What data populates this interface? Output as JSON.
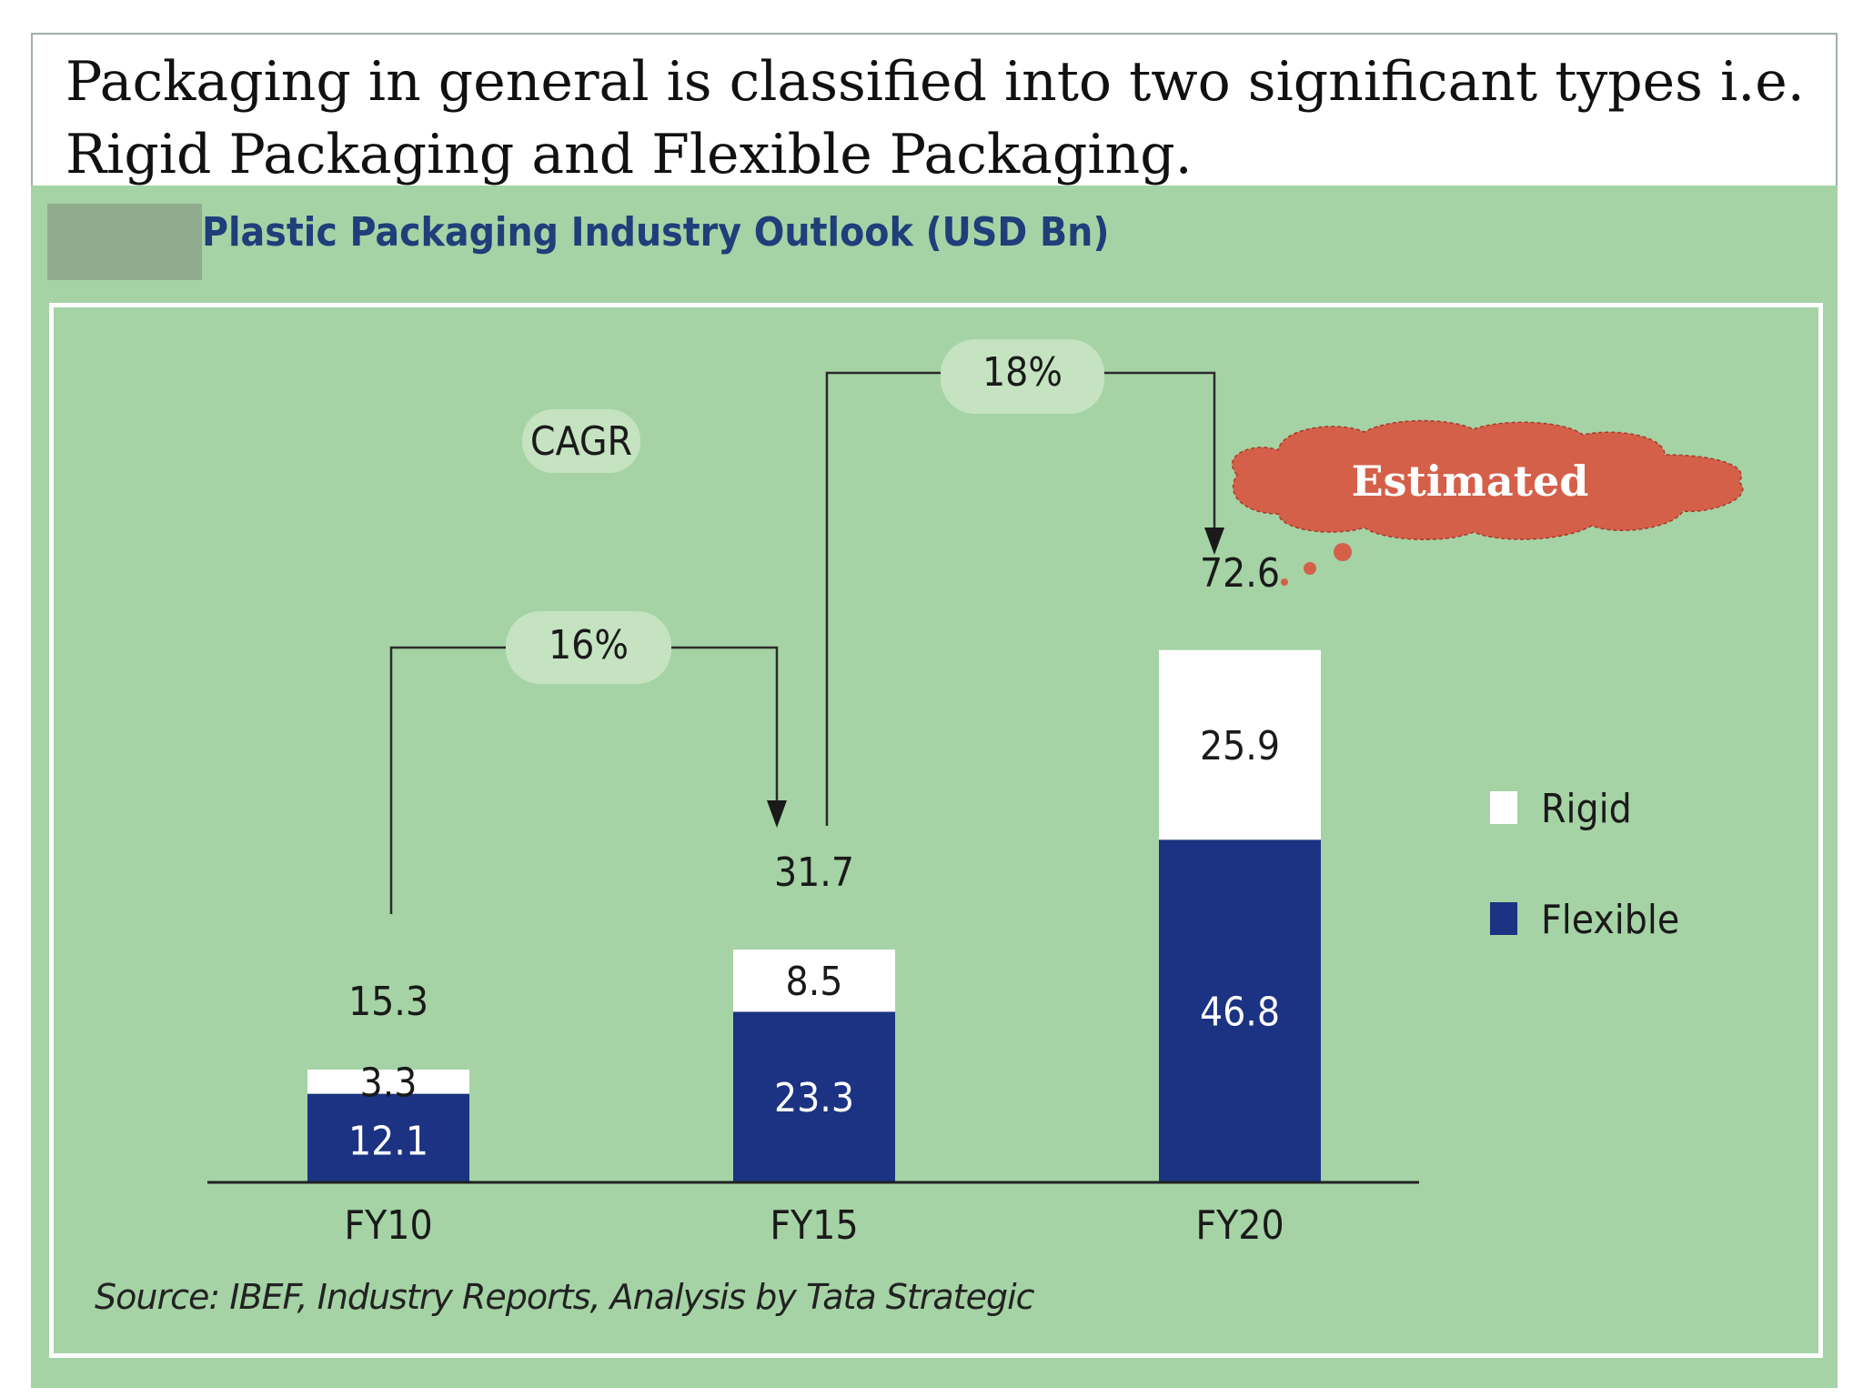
{
  "heading": {
    "line1": "Packaging in general is classified into two significant types i.e.",
    "line2": "Rigid Packaging and Flexible Packaging."
  },
  "source_note": "Source: IBEF, Industry Reports, Analysis by Tata Strategic",
  "callout": {
    "text": "Estimated",
    "color": "#d4604a"
  },
  "cagr_label": "CAGR",
  "colors": {
    "background": "#a5d3a5",
    "flexible": "#1b3382",
    "rigid": "#ffffff",
    "pill": "#c5e3c1"
  },
  "chart_data": {
    "type": "bar",
    "stacked": true,
    "title": "Plastic Packaging Industry Outlook (USD Bn)",
    "categories": [
      "FY10",
      "FY15",
      "FY20"
    ],
    "series": [
      {
        "name": "Flexible",
        "values": [
          12.1,
          23.3,
          46.8
        ],
        "color": "#1b3382"
      },
      {
        "name": "Rigid",
        "values": [
          3.3,
          8.5,
          25.9
        ],
        "color": "#ffffff"
      }
    ],
    "totals": [
      "15.3",
      "31.7",
      "72.6"
    ],
    "segment_labels": {
      "Flexible": [
        "12.1",
        "23.3",
        "46.8"
      ],
      "Rigid": [
        "3.3",
        "8.5",
        "25.9"
      ]
    },
    "cagr": [
      {
        "from": "FY10",
        "to": "FY15",
        "label": "16%"
      },
      {
        "from": "FY15",
        "to": "FY20",
        "label": "18%"
      }
    ],
    "legend_position": "right",
    "grid": false,
    "ylim": [
      0,
      80
    ]
  }
}
